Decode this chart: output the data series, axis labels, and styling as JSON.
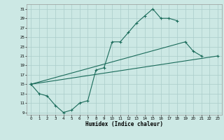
{
  "xlabel": "Humidex (Indice chaleur)",
  "bg_color": "#cce8e4",
  "grid_color": "#aaccca",
  "line_color": "#1a6b5a",
  "xlim": [
    -0.5,
    23.5
  ],
  "ylim": [
    8.5,
    32
  ],
  "xticks": [
    0,
    1,
    2,
    3,
    4,
    5,
    6,
    7,
    8,
    9,
    10,
    11,
    12,
    13,
    14,
    15,
    16,
    17,
    18,
    19,
    20,
    21,
    22,
    23
  ],
  "yticks": [
    9,
    11,
    13,
    15,
    17,
    19,
    21,
    23,
    25,
    27,
    29,
    31
  ],
  "curve1_x": [
    0,
    1,
    2,
    3,
    4,
    5,
    6,
    7,
    8,
    9,
    10,
    11,
    12,
    13,
    14,
    15,
    16,
    17,
    18
  ],
  "curve1_y": [
    15,
    13,
    12.5,
    10.5,
    9,
    9.5,
    11,
    11.5,
    18,
    18.5,
    24,
    24,
    26,
    28,
    29.5,
    31,
    29,
    29,
    28.5
  ],
  "curve2_x": [
    0,
    23
  ],
  "curve2_y": [
    15,
    21
  ],
  "curve3_x": [
    0,
    19,
    20,
    21
  ],
  "curve3_y": [
    15,
    24,
    22,
    21
  ]
}
